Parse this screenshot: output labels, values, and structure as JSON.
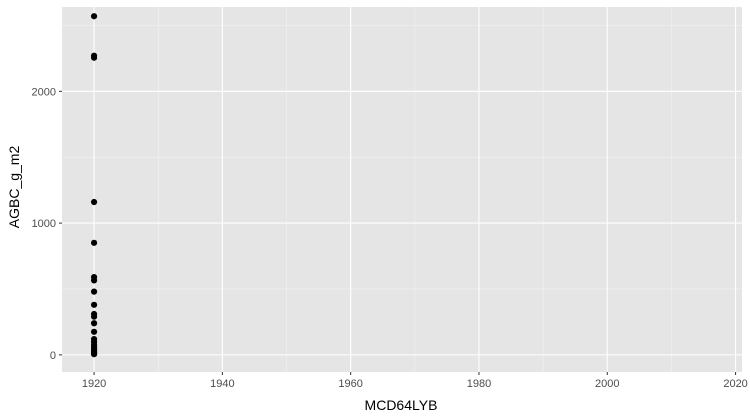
{
  "chart_data": {
    "type": "scatter",
    "title": "",
    "xlabel": "MCD64LYB",
    "ylabel": "AGBC_g_m2",
    "xlim": [
      1915,
      2021
    ],
    "ylim": [
      -130,
      2640
    ],
    "x_ticks": [
      1920,
      1940,
      1960,
      1980,
      2000,
      2020
    ],
    "x_tick_labels": [
      "1920",
      "1940",
      "1960",
      "1980",
      "2000",
      "2020"
    ],
    "y_ticks": [
      0,
      1000,
      2000
    ],
    "y_tick_labels": [
      "0",
      "1000",
      "2000"
    ],
    "grid": true,
    "theme": "ggplot2 grey",
    "points": [
      {
        "x": 1920,
        "y": 2570
      },
      {
        "x": 1920,
        "y": 2270
      },
      {
        "x": 1920,
        "y": 2255
      },
      {
        "x": 1920,
        "y": 1160
      },
      {
        "x": 1920,
        "y": 850
      },
      {
        "x": 1920,
        "y": 590
      },
      {
        "x": 1920,
        "y": 565
      },
      {
        "x": 1920,
        "y": 480
      },
      {
        "x": 1920,
        "y": 380
      },
      {
        "x": 1920,
        "y": 310
      },
      {
        "x": 1920,
        "y": 290
      },
      {
        "x": 1920,
        "y": 240
      },
      {
        "x": 1920,
        "y": 175
      },
      {
        "x": 1920,
        "y": 120
      },
      {
        "x": 1920,
        "y": 100
      },
      {
        "x": 1920,
        "y": 80
      },
      {
        "x": 1920,
        "y": 60
      },
      {
        "x": 1920,
        "y": 45
      },
      {
        "x": 1920,
        "y": 30
      },
      {
        "x": 1920,
        "y": 20
      },
      {
        "x": 1920,
        "y": 10
      },
      {
        "x": 1920,
        "y": 5
      }
    ],
    "colors": {
      "panel_background": "#e5e5e5",
      "grid_major": "#ffffff",
      "grid_minor": "#f2f2f2",
      "point": "#000000",
      "tick": "#333333"
    }
  }
}
